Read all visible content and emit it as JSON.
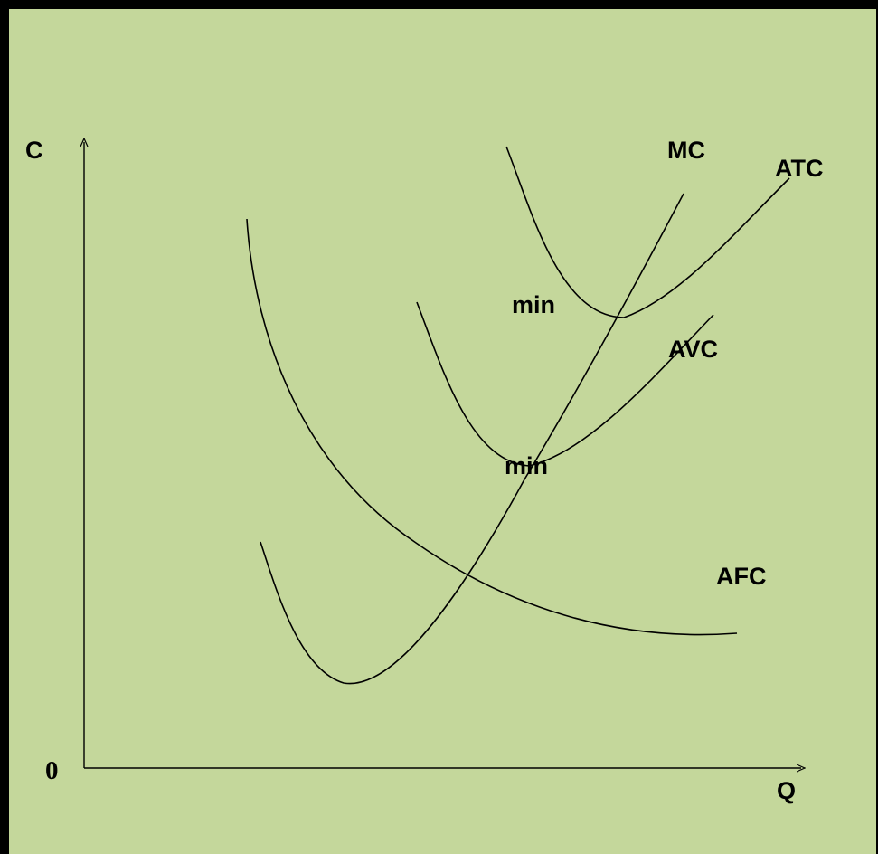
{
  "axes": {
    "y_label": "C",
    "x_label": "Q",
    "origin_label": "0"
  },
  "curves": {
    "mc": {
      "label": "MC",
      "icon": "u-shaped-then-rising-curve"
    },
    "atc": {
      "label": "ATC",
      "icon": "u-shaped-curve"
    },
    "avc": {
      "label": "AVC",
      "icon": "u-shaped-curve"
    },
    "afc": {
      "label": "AFC",
      "icon": "declining-curve"
    }
  },
  "annotations": {
    "atc_min": "min",
    "avc_min": "min"
  },
  "colors": {
    "background": "#c4d79b",
    "stroke": "#000000"
  }
}
